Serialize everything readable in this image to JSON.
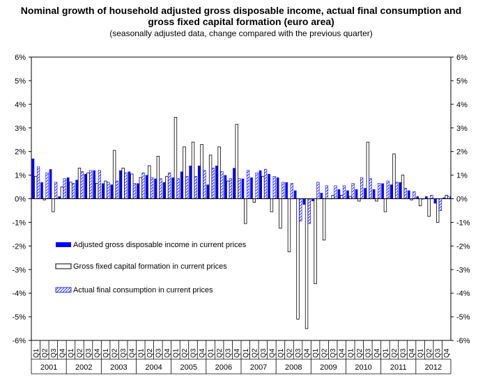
{
  "chart_data": {
    "type": "bar",
    "title_line1": "Nominal growth of household adjusted gross disposable income, actual final consumption and",
    "title_line2": "gross fixed capital formation (euro area)",
    "subtitle": "(seasonally adjusted data, change compared with the previous quarter)",
    "ylim": [
      -6,
      6
    ],
    "yticks": [
      "-6%",
      "-5%",
      "-4%",
      "-3%",
      "-2%",
      "-1%",
      "0%",
      "1%",
      "2%",
      "3%",
      "4%",
      "5%",
      "6%"
    ],
    "years": [
      "2001",
      "2002",
      "2003",
      "2004",
      "2005",
      "2006",
      "2007",
      "2008",
      "2009",
      "2010",
      "2011",
      "2012"
    ],
    "quarters": [
      "Q1",
      "Q2",
      "Q3",
      "Q4"
    ],
    "series": [
      {
        "name": "Adjusted gross disposable income in current prices",
        "style": "solid",
        "color": "#0000ff",
        "values": [
          1.7,
          0.7,
          1.25,
          0.1,
          0.9,
          0.8,
          1.05,
          1.2,
          0.65,
          0.6,
          1.2,
          1.15,
          0.65,
          1.0,
          0.85,
          0.7,
          0.9,
          1.15,
          1.4,
          1.4,
          0.6,
          1.4,
          1.0,
          1.3,
          0.85,
          0.9,
          1.2,
          1.05,
          0.9,
          0.7,
          0.35,
          -0.25,
          -0.1,
          0.25,
          0.0,
          0.4,
          0.35,
          0.4,
          0.45,
          0.4,
          0.65,
          0.6,
          0.7,
          0.35,
          0.1,
          0.1,
          -0.2,
          0.05
        ]
      },
      {
        "name": "Gross fixed capital formation in current prices",
        "style": "outline",
        "color": "#000000",
        "values": [
          0.95,
          -0.05,
          -0.55,
          0.5,
          0.7,
          1.3,
          1.1,
          0.65,
          0.75,
          2.05,
          1.3,
          1.05,
          0.9,
          1.4,
          1.8,
          0.95,
          3.45,
          2.2,
          2.4,
          2.3,
          1.85,
          2.2,
          0.75,
          3.15,
          -1.05,
          -0.15,
          0.95,
          -0.55,
          -1.25,
          -2.25,
          -5.1,
          -5.5,
          -3.6,
          -1.75,
          0.15,
          0.15,
          0.1,
          -0.1,
          2.4,
          -0.1,
          -0.55,
          1.9,
          1.0,
          -0.05,
          -0.3,
          -0.75,
          -1.0,
          0.15
        ]
      },
      {
        "name": "Actual final consumption in current prices",
        "style": "hatched",
        "color": "#0000ff",
        "values": [
          1.35,
          1.1,
          0.7,
          0.85,
          0.65,
          1.15,
          1.2,
          1.2,
          0.7,
          0.75,
          1.1,
          0.65,
          1.1,
          0.9,
          0.85,
          1.1,
          0.85,
          0.95,
          0.95,
          1.2,
          1.3,
          1.15,
          0.85,
          0.85,
          1.2,
          1.1,
          1.25,
          0.95,
          0.7,
          0.65,
          -0.95,
          -1.05,
          0.7,
          0.55,
          0.55,
          0.55,
          0.65,
          0.9,
          0.85,
          0.65,
          0.75,
          0.7,
          0.45,
          0.3,
          0.0,
          0.15,
          -0.5,
          0.1
        ]
      }
    ]
  }
}
